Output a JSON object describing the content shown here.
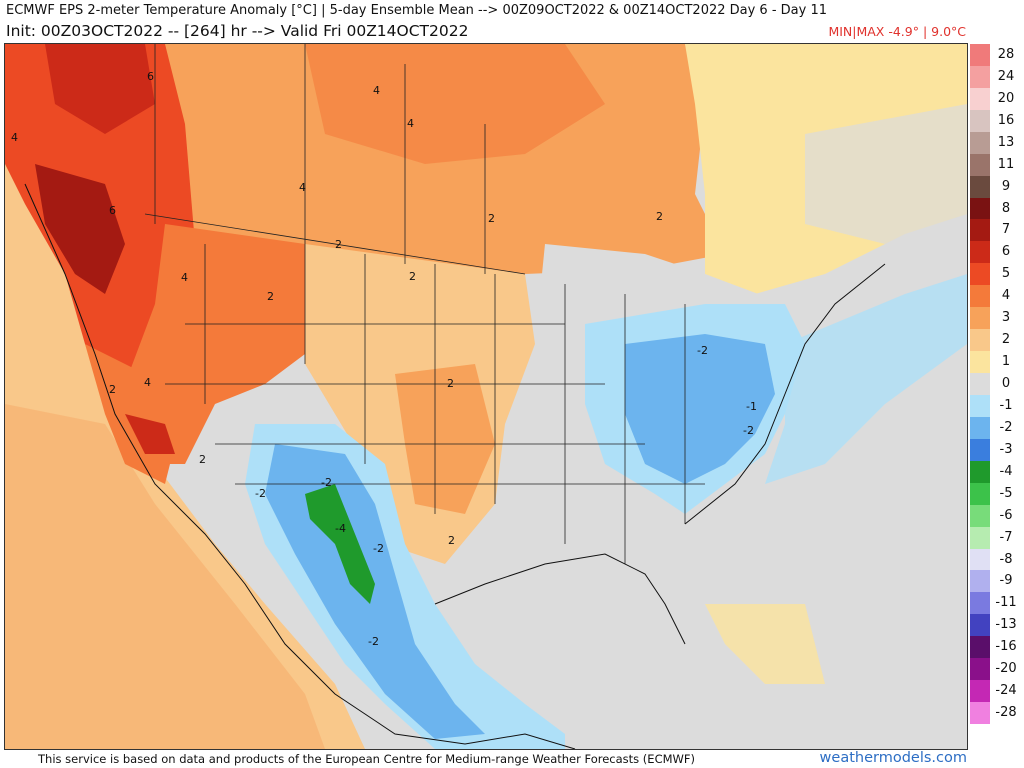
{
  "header": {
    "line1": "ECMWF EPS 2-meter Temperature Anomaly [°C] | 5-day Ensemble Mean --> 00Z09OCT2022 & 00Z14OCT2022   Day 6 - Day 11",
    "line2": "Init: 00Z03OCT2022 -- [264] hr --> Valid Fri 00Z14OCT2022",
    "minmax": "MIN|MAX -4.9° | 9.0°C"
  },
  "colorbar": {
    "entries": [
      {
        "label": "28",
        "color": "#f07a7a"
      },
      {
        "label": "24",
        "color": "#f4a0a0"
      },
      {
        "label": "20",
        "color": "#f8d0d0"
      },
      {
        "label": "16",
        "color": "#d8c4c0"
      },
      {
        "label": "13",
        "color": "#b89c94"
      },
      {
        "label": "11",
        "color": "#9a746a"
      },
      {
        "label": "9",
        "color": "#6a4a3e"
      },
      {
        "label": "8",
        "color": "#7a1212"
      },
      {
        "label": "7",
        "color": "#a41a12"
      },
      {
        "label": "6",
        "color": "#cc2a18"
      },
      {
        "label": "5",
        "color": "#ec4a24"
      },
      {
        "label": "4",
        "color": "#f47a3a"
      },
      {
        "label": "3",
        "color": "#f7a25a"
      },
      {
        "label": "2",
        "color": "#f9c88a"
      },
      {
        "label": "1",
        "color": "#fbe49e"
      },
      {
        "label": "0",
        "color": "#dcdcdc"
      },
      {
        "label": "-1",
        "color": "#aee0f8"
      },
      {
        "label": "-2",
        "color": "#6cb4ee"
      },
      {
        "label": "-3",
        "color": "#3a7ede"
      },
      {
        "label": "-4",
        "color": "#1f9a2c"
      },
      {
        "label": "-5",
        "color": "#3cc24a"
      },
      {
        "label": "-6",
        "color": "#78dc7a"
      },
      {
        "label": "-7",
        "color": "#b6ecb0"
      },
      {
        "label": "-8",
        "color": "#e0e0f4"
      },
      {
        "label": "-9",
        "color": "#b0b0ee"
      },
      {
        "label": "-11",
        "color": "#7a7ae0"
      },
      {
        "label": "-13",
        "color": "#4242c0"
      },
      {
        "label": "-16",
        "color": "#5a0e6a"
      },
      {
        "label": "-20",
        "color": "#8a108a"
      },
      {
        "label": "-24",
        "color": "#c428b4"
      },
      {
        "label": "-28",
        "color": "#f080e0"
      }
    ]
  },
  "map_labels": [
    "6",
    "4",
    "4",
    "4",
    "4",
    "6",
    "2",
    "2",
    "2",
    "4",
    "2",
    "2",
    "4",
    "2",
    "2",
    "2",
    "-2",
    "-2",
    "-1",
    "-2",
    "-2",
    "-4",
    "-2",
    "-2",
    "2"
  ],
  "footer": {
    "disclaimer": "This service is based on data and products of the European Centre for Medium-range Weather Forecasts (ECMWF)",
    "brand": "weathermodels.com"
  }
}
